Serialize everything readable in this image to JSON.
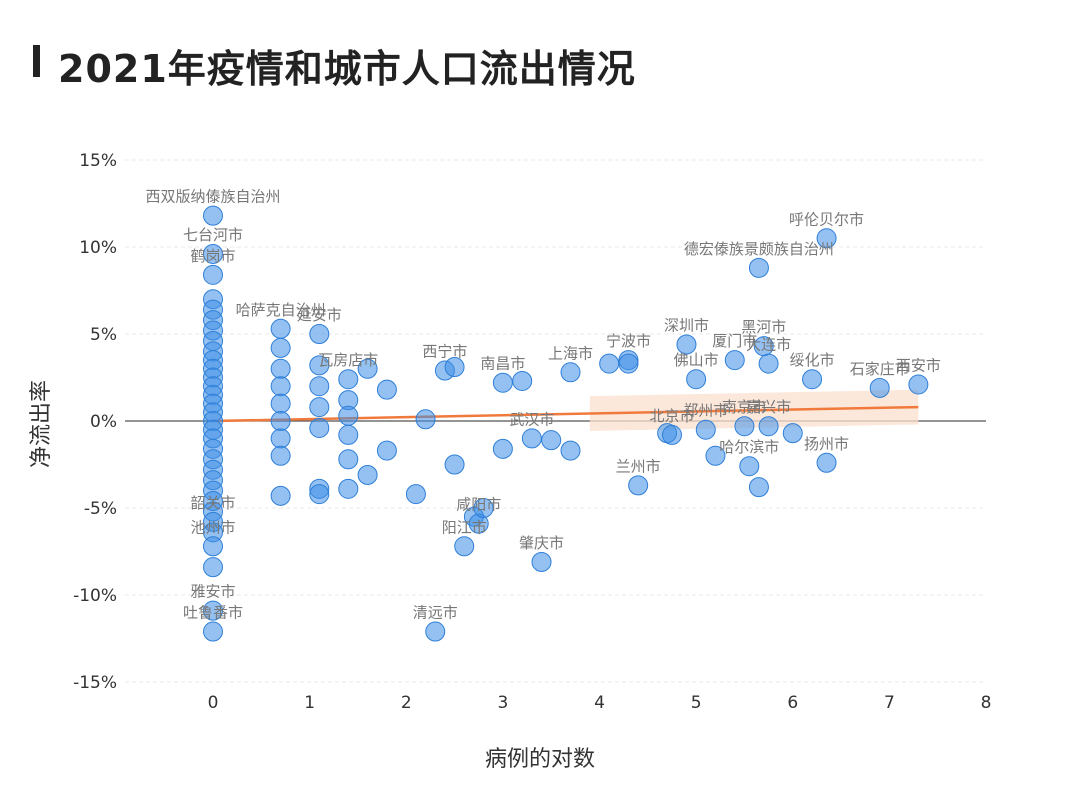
{
  "title": "2021年疫情和城市人口流出情况",
  "chart_data": {
    "type": "scatter",
    "title": "2021年疫情和城市人口流出情况",
    "xlabel": "病例的对数",
    "ylabel": "净流出率",
    "xlim": [
      0,
      8
    ],
    "ylim": [
      -15,
      15
    ],
    "x_ticks": [
      "0",
      "1",
      "2",
      "3",
      "4",
      "5",
      "6",
      "7",
      "8"
    ],
    "y_ticks": [
      "15%",
      "10%",
      "5%",
      "0%",
      "-5%",
      "-10%",
      "-15%"
    ],
    "grid": true,
    "colors": {
      "points": "#3d8ee6",
      "trend": "#f07a3c",
      "trend_band": "#fbe0cf",
      "zero_line": "#555555"
    },
    "trend_line": {
      "x": [
        0,
        7.3
      ],
      "y": [
        0.0,
        0.8
      ]
    },
    "points": [
      {
        "x": 0,
        "y": 11.8,
        "label": "西双版纳傣族自治州"
      },
      {
        "x": 0,
        "y": 9.6,
        "label": "七台河市"
      },
      {
        "x": 0,
        "y": 8.4,
        "label": "鹤岗市"
      },
      {
        "x": 0,
        "y": 7.0,
        "label": ""
      },
      {
        "x": 0,
        "y": 6.4,
        "label": ""
      },
      {
        "x": 0,
        "y": 5.8,
        "label": ""
      },
      {
        "x": 0,
        "y": 5.2,
        "label": ""
      },
      {
        "x": 0,
        "y": 4.6,
        "label": ""
      },
      {
        "x": 0,
        "y": 4.0,
        "label": ""
      },
      {
        "x": 0,
        "y": 3.5,
        "label": ""
      },
      {
        "x": 0,
        "y": 3.0,
        "label": ""
      },
      {
        "x": 0,
        "y": 2.5,
        "label": ""
      },
      {
        "x": 0,
        "y": 2.0,
        "label": ""
      },
      {
        "x": 0,
        "y": 1.5,
        "label": ""
      },
      {
        "x": 0,
        "y": 1.0,
        "label": ""
      },
      {
        "x": 0,
        "y": 0.5,
        "label": ""
      },
      {
        "x": 0,
        "y": 0.0,
        "label": ""
      },
      {
        "x": 0,
        "y": -0.5,
        "label": ""
      },
      {
        "x": 0,
        "y": -1.0,
        "label": ""
      },
      {
        "x": 0,
        "y": -1.6,
        "label": ""
      },
      {
        "x": 0,
        "y": -2.2,
        "label": ""
      },
      {
        "x": 0,
        "y": -2.8,
        "label": ""
      },
      {
        "x": 0,
        "y": -3.4,
        "label": ""
      },
      {
        "x": 0,
        "y": -4.0,
        "label": ""
      },
      {
        "x": 0,
        "y": -4.6,
        "label": ""
      },
      {
        "x": 0,
        "y": -5.2,
        "label": ""
      },
      {
        "x": 0,
        "y": -5.8,
        "label": "韶关市"
      },
      {
        "x": 0,
        "y": -6.4,
        "label": ""
      },
      {
        "x": 0,
        "y": -7.2,
        "label": "池州市"
      },
      {
        "x": 0,
        "y": -8.4,
        "label": ""
      },
      {
        "x": 0,
        "y": -10.9,
        "label": "雅安市"
      },
      {
        "x": 0,
        "y": -12.1,
        "label": "吐鲁番市"
      },
      {
        "x": 0.7,
        "y": 5.3,
        "label": "哈萨克自治州"
      },
      {
        "x": 0.7,
        "y": 4.2,
        "label": ""
      },
      {
        "x": 0.7,
        "y": 3.0,
        "label": ""
      },
      {
        "x": 0.7,
        "y": 2.0,
        "label": ""
      },
      {
        "x": 0.7,
        "y": 1.0,
        "label": ""
      },
      {
        "x": 0.7,
        "y": 0.0,
        "label": ""
      },
      {
        "x": 0.7,
        "y": -1.0,
        "label": ""
      },
      {
        "x": 0.7,
        "y": -2.0,
        "label": ""
      },
      {
        "x": 0.7,
        "y": -4.3,
        "label": ""
      },
      {
        "x": 1.1,
        "y": 5.0,
        "label": "延安市"
      },
      {
        "x": 1.1,
        "y": 3.2,
        "label": ""
      },
      {
        "x": 1.1,
        "y": 2.0,
        "label": ""
      },
      {
        "x": 1.1,
        "y": 0.8,
        "label": ""
      },
      {
        "x": 1.1,
        "y": -0.4,
        "label": ""
      },
      {
        "x": 1.1,
        "y": -3.9,
        "label": ""
      },
      {
        "x": 1.1,
        "y": -4.2,
        "label": ""
      },
      {
        "x": 1.4,
        "y": 2.4,
        "label": "瓦房店市"
      },
      {
        "x": 1.4,
        "y": 1.2,
        "label": ""
      },
      {
        "x": 1.4,
        "y": 0.3,
        "label": ""
      },
      {
        "x": 1.4,
        "y": -0.8,
        "label": ""
      },
      {
        "x": 1.4,
        "y": -2.2,
        "label": ""
      },
      {
        "x": 1.4,
        "y": -3.9,
        "label": ""
      },
      {
        "x": 1.6,
        "y": 3.0,
        "label": ""
      },
      {
        "x": 1.6,
        "y": -3.1,
        "label": ""
      },
      {
        "x": 1.8,
        "y": 1.8,
        "label": ""
      },
      {
        "x": 1.8,
        "y": -1.7,
        "label": ""
      },
      {
        "x": 2.1,
        "y": -4.2,
        "label": ""
      },
      {
        "x": 2.2,
        "y": 0.1,
        "label": ""
      },
      {
        "x": 2.3,
        "y": -12.1,
        "label": "清远市"
      },
      {
        "x": 2.4,
        "y": 2.9,
        "label": "西宁市"
      },
      {
        "x": 2.5,
        "y": 3.1,
        "label": ""
      },
      {
        "x": 2.5,
        "y": -2.5,
        "label": ""
      },
      {
        "x": 2.6,
        "y": -7.2,
        "label": "阳江市"
      },
      {
        "x": 2.7,
        "y": -5.5,
        "label": ""
      },
      {
        "x": 2.75,
        "y": -5.9,
        "label": "咸阳市"
      },
      {
        "x": 2.8,
        "y": -5.0,
        "label": ""
      },
      {
        "x": 3.0,
        "y": 2.2,
        "label": "南昌市"
      },
      {
        "x": 3.0,
        "y": -1.6,
        "label": ""
      },
      {
        "x": 3.2,
        "y": 2.3,
        "label": ""
      },
      {
        "x": 3.3,
        "y": -1.0,
        "label": "武汉市"
      },
      {
        "x": 3.4,
        "y": -8.1,
        "label": "肇庆市"
      },
      {
        "x": 3.5,
        "y": -1.1,
        "label": ""
      },
      {
        "x": 3.7,
        "y": 2.8,
        "label": "上海市"
      },
      {
        "x": 3.7,
        "y": -1.7,
        "label": ""
      },
      {
        "x": 4.1,
        "y": 3.3,
        "label": ""
      },
      {
        "x": 4.3,
        "y": 3.5,
        "label": "宁波市"
      },
      {
        "x": 4.3,
        "y": 3.3,
        "label": ""
      },
      {
        "x": 4.4,
        "y": -3.7,
        "label": "兰州市"
      },
      {
        "x": 4.7,
        "y": -0.7,
        "label": ""
      },
      {
        "x": 4.75,
        "y": -0.8,
        "label": "北京市"
      },
      {
        "x": 4.9,
        "y": 4.4,
        "label": "深圳市"
      },
      {
        "x": 5.0,
        "y": 2.4,
        "label": "佛山市"
      },
      {
        "x": 5.1,
        "y": -0.5,
        "label": "郑州市"
      },
      {
        "x": 5.2,
        "y": -2.0,
        "label": ""
      },
      {
        "x": 5.4,
        "y": 3.5,
        "label": "厦门市"
      },
      {
        "x": 5.5,
        "y": -0.3,
        "label": "南京市"
      },
      {
        "x": 5.55,
        "y": -2.6,
        "label": "哈尔滨市"
      },
      {
        "x": 5.65,
        "y": 8.8,
        "label": "德宏傣族景颇族自治州"
      },
      {
        "x": 5.65,
        "y": -3.8,
        "label": ""
      },
      {
        "x": 5.7,
        "y": 4.3,
        "label": "黑河市"
      },
      {
        "x": 5.75,
        "y": 3.3,
        "label": "大连市"
      },
      {
        "x": 5.75,
        "y": -0.3,
        "label": "嘉兴市"
      },
      {
        "x": 6.0,
        "y": -0.7,
        "label": ""
      },
      {
        "x": 6.2,
        "y": 2.4,
        "label": "绥化市"
      },
      {
        "x": 6.35,
        "y": 10.5,
        "label": "呼伦贝尔市"
      },
      {
        "x": 6.35,
        "y": -2.4,
        "label": "扬州市"
      },
      {
        "x": 6.9,
        "y": 1.9,
        "label": "石家庄市"
      },
      {
        "x": 7.3,
        "y": 2.1,
        "label": "西安市"
      }
    ]
  }
}
